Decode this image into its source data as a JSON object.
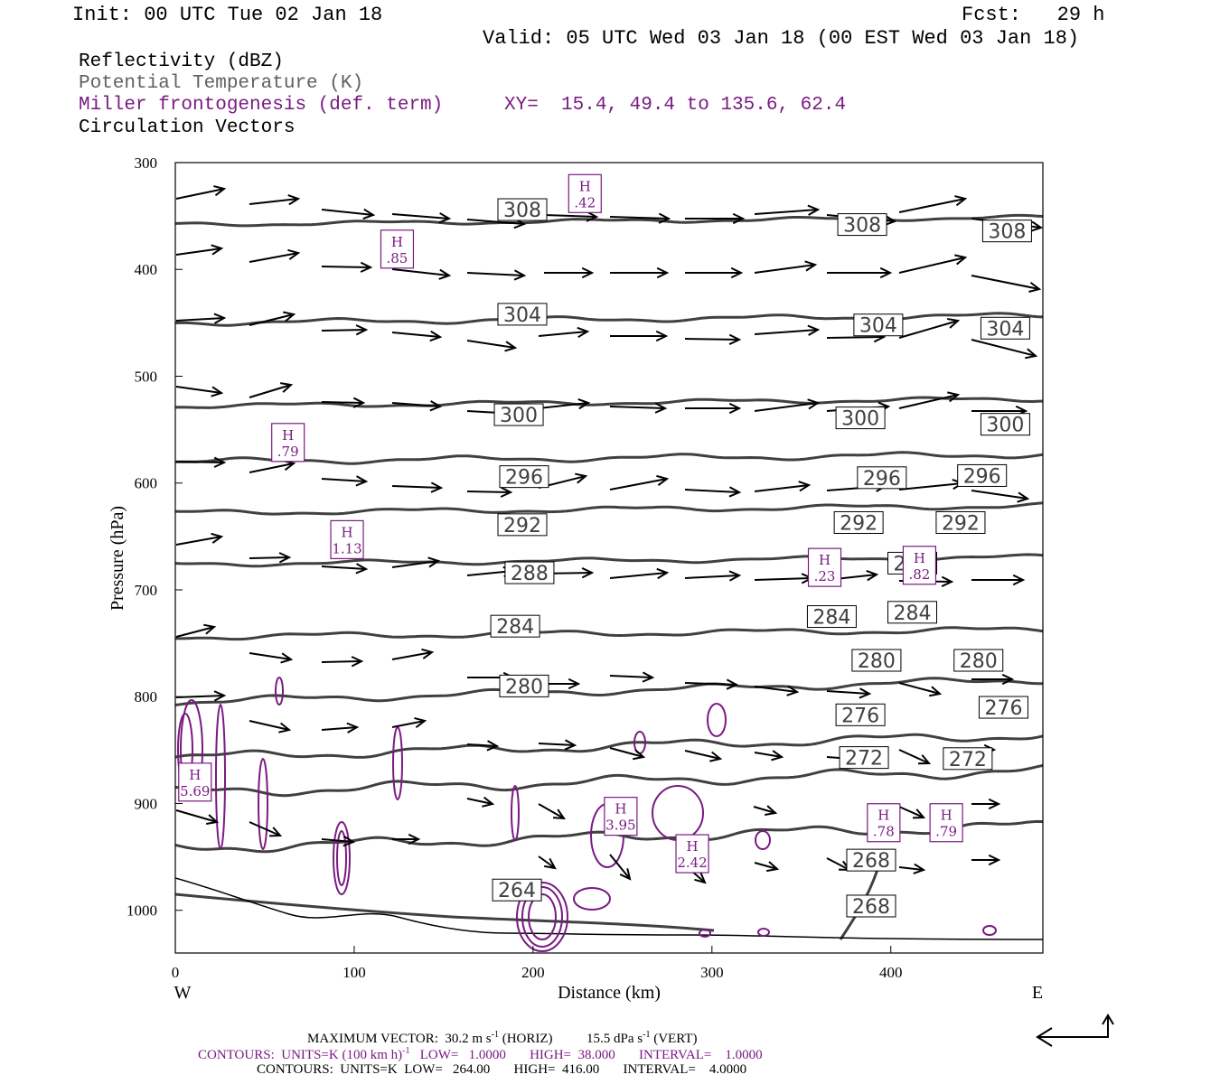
{
  "header": {
    "init": "Init: 00 UTC Tue 02 Jan 18",
    "fcst": "Fcst:   29 h",
    "valid": "Valid: 05 UTC Wed 03 Jan 18 (00 EST Wed 03 Jan 18)"
  },
  "legend": {
    "reflectivity": "Reflectivity (dBZ)",
    "theta": "Potential Temperature (K)",
    "frontogenesis": "Miller frontogenesis (def. term)",
    "xy": "XY=  15.4, 49.4 to 135.6, 62.4",
    "vectors": "Circulation Vectors"
  },
  "colors": {
    "theta": "#404040",
    "frontogenesis": "#7a1a82",
    "text": "#000000",
    "legend_theta": "#606060"
  },
  "chart_data": {
    "type": "line",
    "xlabel": "Distance (km)",
    "ylabel": "Pressure (hPa)",
    "xlim": [
      0,
      485
    ],
    "ylim": [
      1040,
      300
    ],
    "x_ticks": [
      "0",
      "100",
      "200",
      "300",
      "400"
    ],
    "y_ticks": [
      "300",
      "400",
      "500",
      "600",
      "700",
      "800",
      "900",
      "1000"
    ],
    "x_tick_values": [
      0,
      100,
      200,
      300,
      400
    ],
    "y_tick_values": [
      300,
      400,
      500,
      600,
      700,
      800,
      900,
      1000
    ],
    "west_label": "W",
    "east_label": "E",
    "theta_labels": [
      {
        "text": "308",
        "x": 194,
        "p": 344
      },
      {
        "text": "308",
        "x": 384,
        "p": 358
      },
      {
        "text": "308",
        "x": 465,
        "p": 364
      },
      {
        "text": "304",
        "x": 194,
        "p": 442
      },
      {
        "text": "304",
        "x": 393,
        "p": 452
      },
      {
        "text": "304",
        "x": 464,
        "p": 455
      },
      {
        "text": "300",
        "x": 192,
        "p": 536
      },
      {
        "text": "300",
        "x": 383,
        "p": 539
      },
      {
        "text": "300",
        "x": 464,
        "p": 545
      },
      {
        "text": "296",
        "x": 195,
        "p": 594
      },
      {
        "text": "296",
        "x": 395,
        "p": 595
      },
      {
        "text": "296",
        "x": 451,
        "p": 593
      },
      {
        "text": "292",
        "x": 194,
        "p": 639
      },
      {
        "text": "292",
        "x": 382,
        "p": 637
      },
      {
        "text": "292",
        "x": 439,
        "p": 637
      },
      {
        "text": "288",
        "x": 198,
        "p": 684
      },
      {
        "text": "288",
        "x": 412,
        "p": 675
      },
      {
        "text": "284",
        "x": 190,
        "p": 734
      },
      {
        "text": "284",
        "x": 367,
        "p": 725
      },
      {
        "text": "284",
        "x": 412,
        "p": 721
      },
      {
        "text": "280",
        "x": 195,
        "p": 790
      },
      {
        "text": "280",
        "x": 392,
        "p": 766
      },
      {
        "text": "280",
        "x": 449,
        "p": 766
      },
      {
        "text": "276",
        "x": 383,
        "p": 817
      },
      {
        "text": "276",
        "x": 463,
        "p": 810
      },
      {
        "text": "272",
        "x": 385,
        "p": 857
      },
      {
        "text": "272",
        "x": 443,
        "p": 858
      },
      {
        "text": "268",
        "x": 389,
        "p": 953
      },
      {
        "text": "268",
        "x": 389,
        "p": 996
      },
      {
        "text": "264",
        "x": 191,
        "p": 981
      }
    ],
    "frontogenesis_maxima": [
      {
        "letter": "H",
        "value": ".42",
        "x": 229,
        "p": 329
      },
      {
        "letter": "H",
        "value": ".85",
        "x": 124,
        "p": 381
      },
      {
        "letter": "H",
        "value": ".79",
        "x": 63,
        "p": 562
      },
      {
        "letter": "H",
        "value": "1.13",
        "x": 96,
        "p": 653
      },
      {
        "letter": "H",
        "value": ".23",
        "x": 363,
        "p": 679
      },
      {
        "letter": "H",
        "value": ".82",
        "x": 416,
        "p": 677
      },
      {
        "letter": "H",
        "value": "5.69",
        "x": 11,
        "p": 880
      },
      {
        "letter": "H",
        "value": "3.95",
        "x": 249,
        "p": 912
      },
      {
        "letter": "H",
        "value": "2.42",
        "x": 289,
        "p": 947
      },
      {
        "letter": "H",
        "value": ".78",
        "x": 396,
        "p": 918
      },
      {
        "letter": "H",
        "value": ".79",
        "x": 431,
        "p": 918
      }
    ]
  },
  "footer": {
    "max_vector": "MAXIMUM VECTOR:  30.2 m s",
    "max_vector_sup1": "-1",
    "max_vector_mid": " (HORIZ)          15.5 dPa s",
    "max_vector_sup2": "-1",
    "max_vector_end": " (VERT)",
    "contours_fgen": "CONTOURS:  UNITS=K (100 km h)",
    "contours_fgen_sup": "-1",
    "contours_fgen_end": "   LOW=   1.0000       HIGH=  38.000       INTERVAL=    1.0000",
    "contours_theta": "CONTOURS:  UNITS=K  LOW=   264.00       HIGH=  416.00       INTERVAL=    4.0000"
  }
}
